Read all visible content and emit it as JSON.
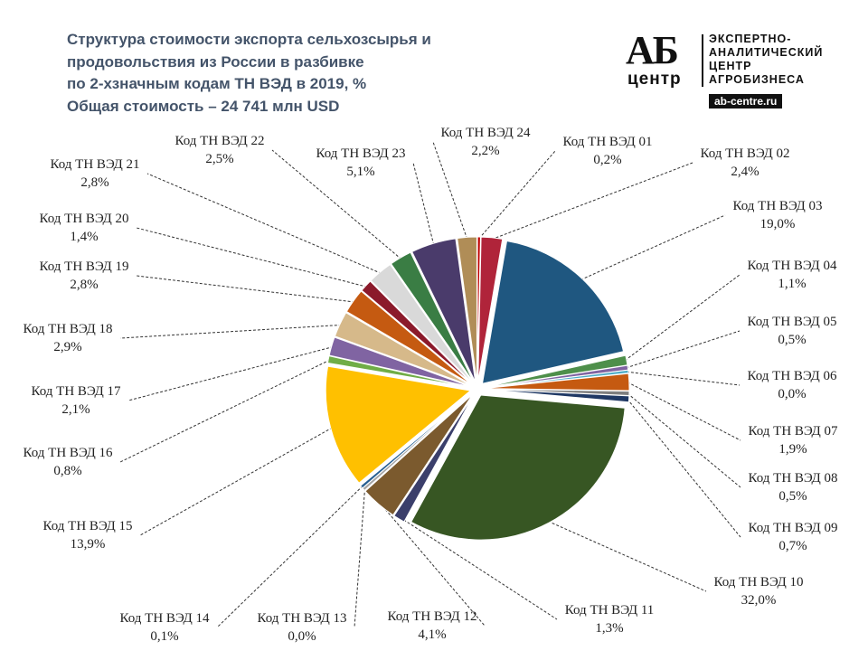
{
  "title_lines": [
    "Структура  стоимости экспорта сельхозсырья и",
    "продовольствия  из России в разбивке",
    "по 2-хзначным кодам ТН ВЭД в 2019, %",
    "Общая стоимость – 24 741 млн USD"
  ],
  "logo": {
    "mark": "АБ",
    "mark_sub": "центр",
    "org_lines": [
      "ЭКСПЕРТНО-",
      "АНАЛИТИЧЕСКИЙ",
      "ЦЕНТР",
      "АГРОБИЗНЕСА"
    ],
    "url": "ab-centre.ru"
  },
  "chart_data": {
    "type": "pie",
    "title": "Структура  стоимости экспорта сельхозсырья и продовольствия  из России в разбивке по 2-хзначным кодам ТН ВЭД в 2019, %",
    "subtitle": "Общая стоимость – 24 741 млн USD",
    "unit": "%",
    "total": "24 741 млн USD",
    "slices": [
      {
        "label": "Код ТН ВЭД 01",
        "value": 0.2,
        "value_label": "0,2%",
        "color": "#c00000"
      },
      {
        "label": "Код ТН ВЭД 02",
        "value": 2.4,
        "value_label": "2,4%",
        "color": "#b0243a"
      },
      {
        "label": "Код ТН ВЭД 03",
        "value": 19.0,
        "value_label": "19,0%",
        "color": "#1f5780"
      },
      {
        "label": "Код ТН ВЭД 04",
        "value": 1.1,
        "value_label": "1,1%",
        "color": "#4e8f4a"
      },
      {
        "label": "Код ТН ВЭД 05",
        "value": 0.5,
        "value_label": "0,5%",
        "color": "#8064a2"
      },
      {
        "label": "Код ТН ВЭД 06",
        "value": 0.0,
        "value_label": "0,0%",
        "color": "#4bacc6"
      },
      {
        "label": "Код ТН ВЭД 07",
        "value": 1.9,
        "value_label": "1,9%",
        "color": "#c55a11"
      },
      {
        "label": "Код ТН ВЭД 08",
        "value": 0.5,
        "value_label": "0,5%",
        "color": "#7f7f7f"
      },
      {
        "label": "Код ТН ВЭД 09",
        "value": 0.7,
        "value_label": "0,7%",
        "color": "#1f3864"
      },
      {
        "label": "Код ТН ВЭД 10",
        "value": 32.0,
        "value_label": "32,0%",
        "color": "#375623"
      },
      {
        "label": "Код ТН ВЭД 11",
        "value": 1.3,
        "value_label": "1,3%",
        "color": "#3b3f6b"
      },
      {
        "label": "Код ТН ВЭД 12",
        "value": 4.1,
        "value_label": "4,1%",
        "color": "#7b5a2e"
      },
      {
        "label": "Код ТН ВЭД 13",
        "value": 0.0,
        "value_label": "0,0%",
        "color": "#a5a5a5"
      },
      {
        "label": "Код ТН ВЭД 14",
        "value": 0.1,
        "value_label": "0,1%",
        "color": "#255e91"
      },
      {
        "label": "Код ТН ВЭД 15",
        "value": 13.9,
        "value_label": "13,9%",
        "color": "#ffc000"
      },
      {
        "label": "Код ТН ВЭД 16",
        "value": 0.8,
        "value_label": "0,8%",
        "color": "#70ad47"
      },
      {
        "label": "Код ТН ВЭД 17",
        "value": 2.1,
        "value_label": "2,1%",
        "color": "#8064a2"
      },
      {
        "label": "Код ТН ВЭД 18",
        "value": 2.9,
        "value_label": "2,9%",
        "color": "#d6b98a"
      },
      {
        "label": "Код ТН ВЭД 19",
        "value": 2.8,
        "value_label": "2,8%",
        "color": "#c55a11"
      },
      {
        "label": "Код ТН ВЭД 20",
        "value": 1.4,
        "value_label": "1,4%",
        "color": "#8b1a2b"
      },
      {
        "label": "Код ТН ВЭД 21",
        "value": 2.8,
        "value_label": "2,8%",
        "color": "#d9d9d9"
      },
      {
        "label": "Код ТН ВЭД 22",
        "value": 2.5,
        "value_label": "2,5%",
        "color": "#3a7d44"
      },
      {
        "label": "Код ТН ВЭД 23",
        "value": 5.1,
        "value_label": "5,1%",
        "color": "#4a3b6b"
      },
      {
        "label": "Код ТН ВЭД 24",
        "value": 2.2,
        "value_label": "2,2%",
        "color": "#b08d57"
      }
    ],
    "legend": "none",
    "label_style": "callouts with dashed leader lines"
  }
}
